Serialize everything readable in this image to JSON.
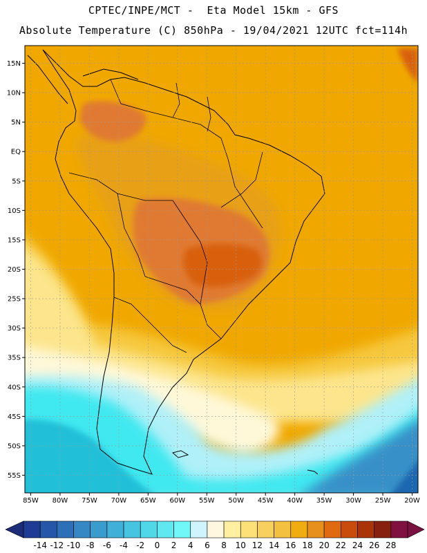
{
  "header": {
    "line1": "CPTEC/INPE/MCT -  Eta Model 15km - GFS",
    "line2": "Absolute Temperature (C) 850hPa - 19/04/2021 12UTC fct=114h"
  },
  "map": {
    "lat_labels": [
      "15N",
      "10N",
      "5N",
      "EQ",
      "5S",
      "10S",
      "15S",
      "20S",
      "25S",
      "30S",
      "35S",
      "40S",
      "45S",
      "50S",
      "55S"
    ],
    "lon_labels": [
      "85W",
      "80W",
      "75W",
      "70W",
      "65W",
      "60W",
      "55W",
      "50W",
      "45W",
      "40W",
      "35W",
      "30W",
      "25W",
      "20W"
    ],
    "lat_values": [
      15,
      10,
      5,
      0,
      -5,
      -10,
      -15,
      -20,
      -25,
      -30,
      -35,
      -40,
      -45,
      -50,
      -55
    ],
    "lon_values": [
      -85,
      -80,
      -75,
      -70,
      -65,
      -60,
      -55,
      -50,
      -45,
      -40,
      -35,
      -30,
      -25,
      -20
    ],
    "lon_range": [
      -86,
      -19
    ],
    "lat_range": [
      18,
      -58
    ],
    "field_colors": {
      "warm_north": "#f0a800",
      "warm_core": "#e8a018",
      "hot": "#e07a30",
      "hotter": "#d86010",
      "mild": "#f6c83e",
      "cool": "#fce58c",
      "pale": "#fff8d8",
      "cold": "#b0f0f8",
      "colder": "#40e8f0",
      "coldest": "#20c0d8",
      "deep_ocean": "#3890c8",
      "deep_ocean2": "#1c68b0"
    },
    "coast_color": "#000000"
  },
  "colorbar": {
    "labels": [
      "-14",
      "-12",
      "-10",
      "-8",
      "-6",
      "-4",
      "-2",
      "0",
      "2",
      "4",
      "6",
      "8",
      "10",
      "12",
      "14",
      "16",
      "18",
      "20",
      "22",
      "24",
      "26",
      "28"
    ],
    "colors": [
      "#1e3c94",
      "#2656a8",
      "#2e70b8",
      "#3688c4",
      "#3a9ccc",
      "#40b0d8",
      "#46c4e0",
      "#50d8e8",
      "#60e8f0",
      "#70f8f8",
      "#d0f4fc",
      "#fff8e0",
      "#fef0a0",
      "#fce078",
      "#f8d060",
      "#f4c040",
      "#f0ac10",
      "#e8901c",
      "#e06a10",
      "#c84c0c",
      "#a83408",
      "#882010",
      "#801040"
    ],
    "low_arrow_color": "#1c2c78",
    "high_arrow_color": "#781040"
  }
}
